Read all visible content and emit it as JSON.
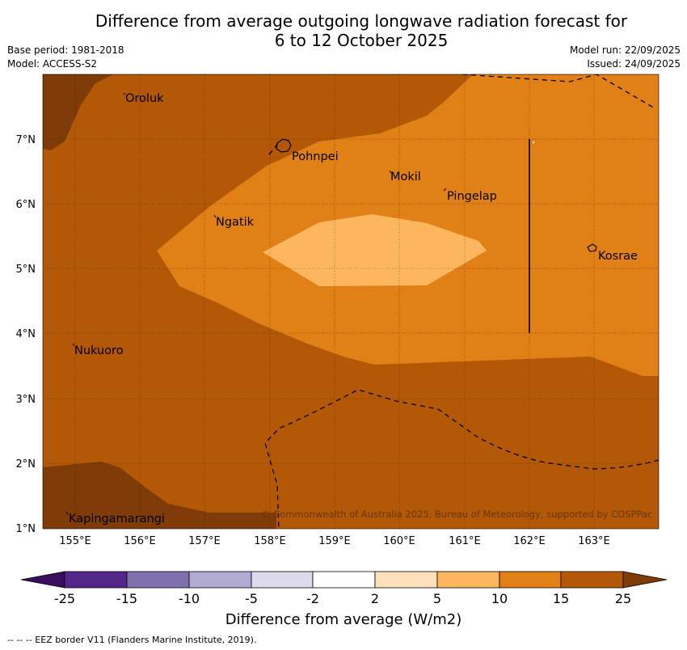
{
  "title": {
    "line1": "Difference from average outgoing longwave radiation forecast for",
    "line2": "6 to 12 October 2025"
  },
  "meta": {
    "base_period": "Base period: 1981-2018",
    "model": "Model: ACCESS-S2",
    "model_run": "Model run: 22/09/2025",
    "issued": "Issued: 24/09/2025"
  },
  "map": {
    "lon_range": [
      154.5,
      164.0
    ],
    "lat_range": [
      1.0,
      8.0
    ],
    "lon_ticks": [
      "155°E",
      "156°E",
      "157°E",
      "158°E",
      "159°E",
      "160°E",
      "161°E",
      "162°E",
      "163°E"
    ],
    "lat_ticks": [
      "1°N",
      "2°N",
      "3°N",
      "4°N",
      "5°N",
      "6°N",
      "7°N"
    ],
    "places": [
      {
        "name": "Oroluk",
        "lon": 155.75,
        "lat": 7.7
      },
      {
        "name": "Pohnpei",
        "lon": 158.3,
        "lat": 6.85
      },
      {
        "name": "Mokil",
        "lon": 159.85,
        "lat": 6.45
      },
      {
        "name": "Pingelap",
        "lon": 160.75,
        "lat": 6.15
      },
      {
        "name": "Ngatik",
        "lon": 157.15,
        "lat": 5.75
      },
      {
        "name": "Kosrae",
        "lon": 163.05,
        "lat": 5.3
      },
      {
        "name": "Nukuoro",
        "lon": 154.95,
        "lat": 3.85
      },
      {
        "name": "Kapingamarangi",
        "lon": 154.85,
        "lat": 1.2
      }
    ],
    "copyright": "© Commonwealth of Australia 2025, Bureau of Meteorology, supported by COSPPac"
  },
  "colorbar": {
    "label": "Difference from average (W/m2)",
    "ticks": [
      "-25",
      "-15",
      "-10",
      "-5",
      "-2",
      "2",
      "5",
      "10",
      "15",
      "25"
    ],
    "colors": [
      "#3a0d5e",
      "#54268a",
      "#8070ad",
      "#b3aad3",
      "#dcdaeb",
      "#ffffff",
      "#fde0bc",
      "#fbb65e",
      "#e08016",
      "#b35806",
      "#7f3b08"
    ]
  },
  "footnote": "--  --  -- EEZ border V11 (Flanders Marine Institute, 2019)."
}
